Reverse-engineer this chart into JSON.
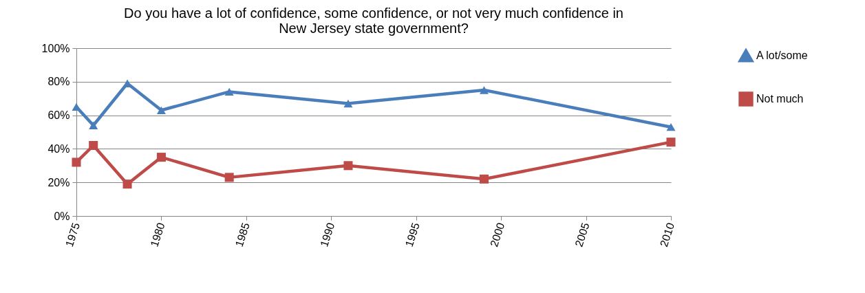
{
  "chart_data": {
    "type": "line",
    "title": "Do you have a lot of confidence, some confidence, or not very much confidence in New Jersey state government?",
    "x": [
      1975,
      1976,
      1978,
      1980,
      1984,
      1991,
      1999,
      2010
    ],
    "series": [
      {
        "name": "A lot/some",
        "color": "#4a7ebb",
        "marker": "triangle",
        "values": [
          65,
          54,
          79,
          63,
          74,
          67,
          75,
          53
        ]
      },
      {
        "name": "Not much",
        "color": "#be4b48",
        "marker": "square",
        "values": [
          32,
          42,
          19,
          35,
          23,
          30,
          22,
          44
        ]
      }
    ],
    "xlim": [
      1975,
      2010
    ],
    "xticks": [
      1975,
      1980,
      1985,
      1990,
      1995,
      2000,
      2005,
      2010
    ],
    "ylim": [
      0,
      100
    ],
    "yticks": [
      {
        "value": 0,
        "label": "0%"
      },
      {
        "value": 20,
        "label": "20%"
      },
      {
        "value": 40,
        "label": "40%"
      },
      {
        "value": 60,
        "label": "60%"
      },
      {
        "value": 80,
        "label": "80%"
      },
      {
        "value": 100,
        "label": "100%"
      }
    ],
    "grid": "y",
    "legend": "right"
  }
}
